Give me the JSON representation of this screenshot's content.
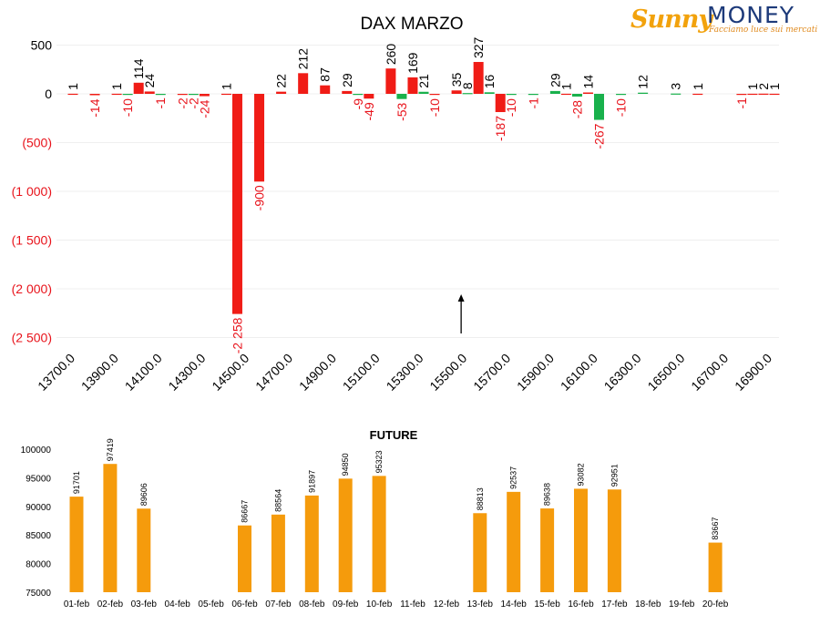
{
  "logo": {
    "brand_a": "Sunny",
    "brand_b": "MONEY",
    "tagline": "Facciamo luce sui mercati"
  },
  "colors": {
    "positive": "#000000",
    "negative_text": "#e8131b",
    "red_bar": "#f01c16",
    "green_bar": "#19b14c",
    "future_bar": "#f59b0c",
    "grid": "#efefef"
  },
  "chart_data": [
    {
      "type": "bar",
      "title": "DAX MARZO",
      "ylim": [
        -2500,
        500
      ],
      "yticks": [
        {
          "value": 500,
          "label": "500"
        },
        {
          "value": 0,
          "label": "0"
        },
        {
          "value": -500,
          "label": "(500)"
        },
        {
          "value": -1000,
          "label": "(1 000)"
        },
        {
          "value": -1500,
          "label": "(1 500)"
        },
        {
          "value": -2000,
          "label": "(2 000)"
        },
        {
          "value": -2500,
          "label": "(2 500)"
        }
      ],
      "xlim": [
        13700,
        16900
      ],
      "xtick_labels": [
        "13700.0",
        "13900.0",
        "14100.0",
        "14300.0",
        "14500.0",
        "14700.0",
        "14900.0",
        "15100.0",
        "15300.0",
        "15500.0",
        "15700.0",
        "15900.0",
        "16100.0",
        "16300.0",
        "16500.0",
        "16700.0",
        "16900.0"
      ],
      "grid": true,
      "arrow_at_strike": 15500,
      "series": [
        {
          "color": "red",
          "points": [
            {
              "x": 13700,
              "y": 1,
              "label": "1"
            },
            {
              "x": 13800,
              "y": -14,
              "label": "-14"
            },
            {
              "x": 13900,
              "y": 1,
              "label": "1"
            },
            {
              "x": 14000,
              "y": 114,
              "label": "114"
            },
            {
              "x": 14050,
              "y": 24,
              "label": "24"
            },
            {
              "x": 14200,
              "y": -2,
              "label": "-2"
            },
            {
              "x": 14300,
              "y": -24,
              "label": "-24"
            },
            {
              "x": 14400,
              "y": 1,
              "label": "1"
            },
            {
              "x": 14450,
              "y": -2258,
              "label": "-2 258"
            },
            {
              "x": 14550,
              "y": -900,
              "label": "-900"
            },
            {
              "x": 14650,
              "y": 22,
              "label": "22"
            },
            {
              "x": 14750,
              "y": 212,
              "label": "212"
            },
            {
              "x": 14850,
              "y": 87,
              "label": "87"
            },
            {
              "x": 14950,
              "y": 29,
              "label": "29"
            },
            {
              "x": 15050,
              "y": -49,
              "label": "-49"
            },
            {
              "x": 15150,
              "y": 260,
              "label": "260"
            },
            {
              "x": 15250,
              "y": 169,
              "label": "169"
            },
            {
              "x": 15350,
              "y": -10,
              "label": "-10"
            },
            {
              "x": 15450,
              "y": 35,
              "label": "35"
            },
            {
              "x": 15550,
              "y": 327,
              "label": "327"
            },
            {
              "x": 15650,
              "y": -187,
              "label": "-187"
            },
            {
              "x": 15950,
              "y": 1,
              "label": "1"
            },
            {
              "x": 16050,
              "y": 14,
              "label": "14"
            },
            {
              "x": 16550,
              "y": 1,
              "label": "1"
            },
            {
              "x": 16750,
              "y": -1,
              "label": "-1"
            },
            {
              "x": 16800,
              "y": 1,
              "label": "1"
            },
            {
              "x": 16850,
              "y": 2,
              "label": "2"
            },
            {
              "x": 16900,
              "y": 1,
              "label": "1"
            }
          ]
        },
        {
          "color": "green",
          "points": [
            {
              "x": 13950,
              "y": -10,
              "label": "-10"
            },
            {
              "x": 14100,
              "y": -1,
              "label": "-1"
            },
            {
              "x": 14250,
              "y": -2,
              "label": "-2"
            },
            {
              "x": 15000,
              "y": -9,
              "label": "-9"
            },
            {
              "x": 15200,
              "y": -53,
              "label": "-53"
            },
            {
              "x": 15300,
              "y": 21,
              "label": "21"
            },
            {
              "x": 15500,
              "y": 8,
              "label": "8"
            },
            {
              "x": 15600,
              "y": 16,
              "label": "16"
            },
            {
              "x": 15700,
              "y": -10,
              "label": "-10"
            },
            {
              "x": 15800,
              "y": -1,
              "label": "-1"
            },
            {
              "x": 15900,
              "y": 29,
              "label": "29"
            },
            {
              "x": 16000,
              "y": -28,
              "label": "-28"
            },
            {
              "x": 16100,
              "y": -267,
              "label": "-267"
            },
            {
              "x": 16200,
              "y": -10,
              "label": "-10"
            },
            {
              "x": 16300,
              "y": 12,
              "label": "12"
            },
            {
              "x": 16450,
              "y": 3,
              "label": "3"
            }
          ]
        }
      ]
    },
    {
      "type": "bar",
      "title": "FUTURE",
      "ylim": [
        75000,
        100000
      ],
      "yticks": [
        75000,
        80000,
        85000,
        90000,
        95000,
        100000
      ],
      "categories": [
        "01-feb",
        "02-feb",
        "03-feb",
        "04-feb",
        "05-feb",
        "06-feb",
        "07-feb",
        "08-feb",
        "09-feb",
        "10-feb",
        "11-feb",
        "12-feb",
        "13-feb",
        "14-feb",
        "15-feb",
        "16-feb",
        "17-feb",
        "18-feb",
        "19-feb",
        "20-feb"
      ],
      "values": [
        91701,
        97419,
        89606,
        null,
        null,
        86667,
        88564,
        91897,
        94850,
        95323,
        null,
        null,
        88813,
        92537,
        89638,
        93082,
        92951,
        null,
        null,
        83667
      ]
    }
  ]
}
